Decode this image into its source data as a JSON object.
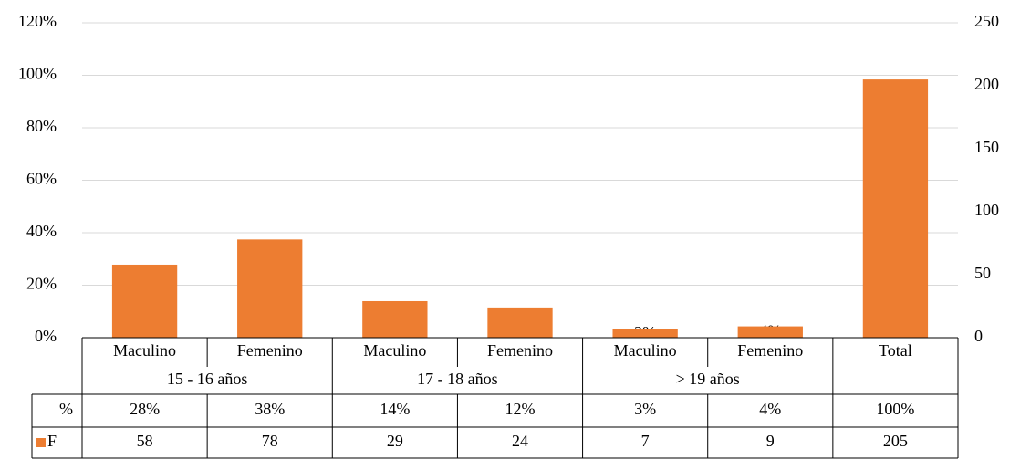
{
  "chart_data": {
    "type": "bar",
    "categories": [
      "Maculino",
      "Femenino",
      "Maculino",
      "Femenino",
      "Maculino",
      "Femenino",
      "Total"
    ],
    "groups": [
      "15 - 16 años",
      "17 - 18 años",
      "> 19 años"
    ],
    "series": [
      {
        "name": "%",
        "color": "none",
        "values": [
          28,
          38,
          14,
          12,
          3,
          4,
          100
        ],
        "value_labels": [
          "28%",
          "38%",
          "14%",
          "12%",
          "3%",
          "4%",
          "100%"
        ]
      },
      {
        "name": "F",
        "color": "#ed7d31",
        "axis": "y2",
        "values": [
          58,
          78,
          29,
          24,
          7,
          9,
          205
        ]
      }
    ],
    "ylim": [
      0,
      120
    ],
    "yticks": [
      {
        "value": 0,
        "label": "0%"
      },
      {
        "value": 20,
        "label": "20%"
      },
      {
        "value": 40,
        "label": "40%"
      },
      {
        "value": 60,
        "label": "60%"
      },
      {
        "value": 80,
        "label": "80%"
      },
      {
        "value": 100,
        "label": "100%"
      },
      {
        "value": 120,
        "label": "120%"
      }
    ],
    "y2lim": [
      0,
      250
    ],
    "y2ticks": [
      0,
      50,
      100,
      150,
      200,
      250
    ],
    "grid": true
  }
}
